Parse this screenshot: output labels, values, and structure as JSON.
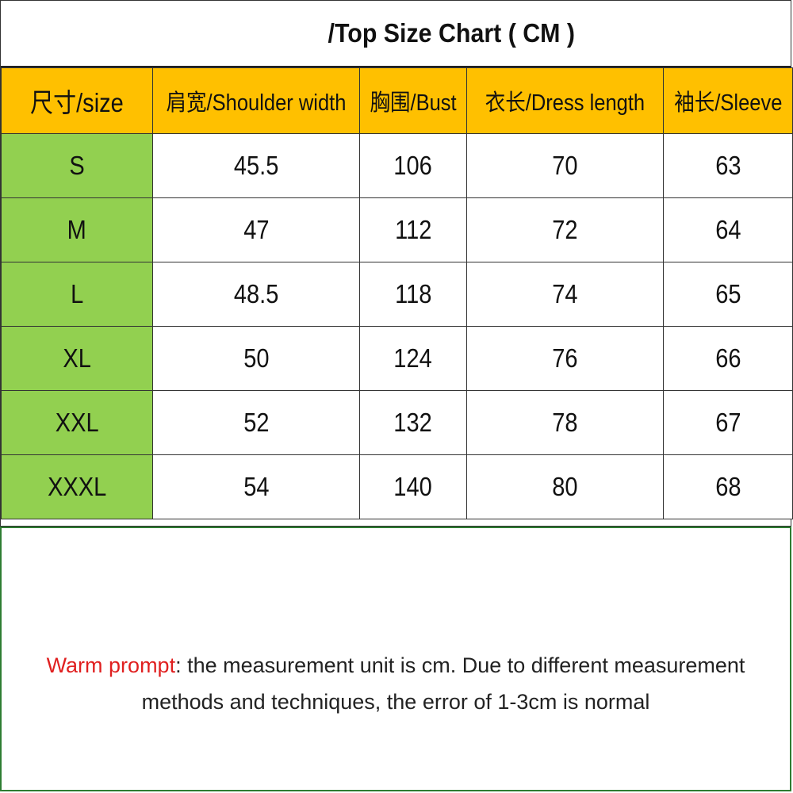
{
  "title": "/Top Size Chart ( CM )",
  "table": {
    "headers": [
      "尺寸/size",
      "肩宽/Shoulder width",
      "胸围/Bust",
      "衣长/Dress length",
      "袖长/Sleeve"
    ],
    "rows": [
      [
        "S",
        "45.5",
        "106",
        "70",
        "63"
      ],
      [
        "M",
        "47",
        "112",
        "72",
        "64"
      ],
      [
        "L",
        "48.5",
        "118",
        "74",
        "65"
      ],
      [
        "XL",
        "50",
        "124",
        "76",
        "66"
      ],
      [
        "XXL",
        "52",
        "132",
        "78",
        "67"
      ],
      [
        "XXXL",
        "54",
        "140",
        "80",
        "68"
      ]
    ]
  },
  "note": {
    "label": "Warm prompt",
    "line1": ": the measurement unit is cm. Due to different measurement",
    "line2": "methods and techniques, the error of 1-3cm is normal"
  },
  "colors": {
    "header_bg": "#ffc000",
    "size_col_bg": "#92d050",
    "warm_prompt": "#e02020",
    "note_border": "#2e7d32"
  }
}
